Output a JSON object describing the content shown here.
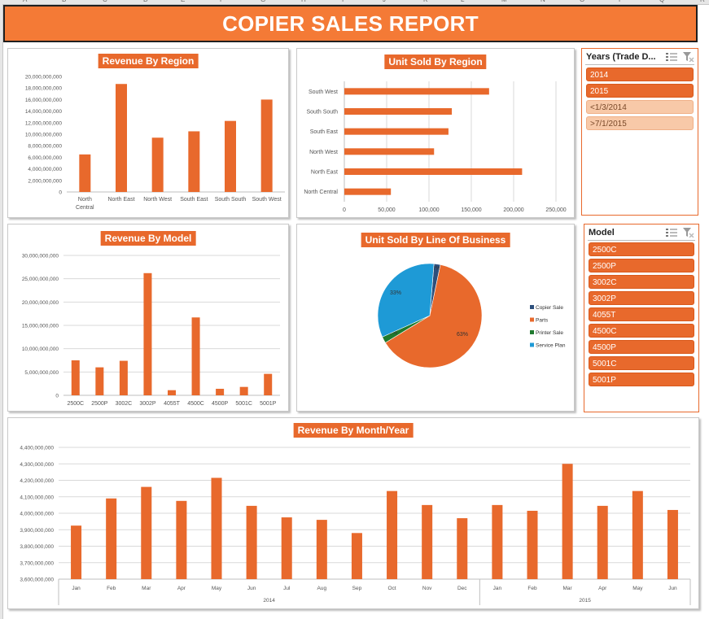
{
  "sheet": {
    "columns": [
      "A",
      "B",
      "C",
      "D",
      "E",
      "F",
      "G",
      "H",
      "I",
      "J",
      "K",
      "L",
      "M",
      "N",
      "O",
      "P",
      "Q",
      "R"
    ]
  },
  "report": {
    "title": "COPIER SALES REPORT"
  },
  "colors": {
    "accent": "#e8692c",
    "blue": "#1e9ad6",
    "green": "#1f7a2e",
    "navy": "#2d4f7c"
  },
  "slicers": {
    "years": {
      "title": "Years (Trade D...",
      "items": [
        {
          "label": "2014",
          "selected": true
        },
        {
          "label": "2015",
          "selected": true
        },
        {
          "label": "<1/3/2014",
          "selected": false
        },
        {
          "label": ">7/1/2015",
          "selected": false
        }
      ]
    },
    "model": {
      "title": "Model",
      "items": [
        {
          "label": "2500C",
          "selected": true
        },
        {
          "label": "2500P",
          "selected": true
        },
        {
          "label": "3002C",
          "selected": true
        },
        {
          "label": "3002P",
          "selected": true
        },
        {
          "label": "4055T",
          "selected": true
        },
        {
          "label": "4500C",
          "selected": true
        },
        {
          "label": "4500P",
          "selected": true
        },
        {
          "label": "5001C",
          "selected": true
        },
        {
          "label": "5001P",
          "selected": true
        }
      ]
    }
  },
  "chart_data": [
    {
      "id": "revenue_by_region",
      "type": "bar",
      "title": "Revenue By Region",
      "categories": [
        "North Central",
        "North East",
        "North West",
        "South East",
        "South South",
        "South West"
      ],
      "category_lines": [
        [
          "North",
          "Central"
        ],
        [
          "North East"
        ],
        [
          "North West"
        ],
        [
          "South East"
        ],
        [
          "South South"
        ],
        [
          "South West"
        ]
      ],
      "values": [
        6500000000,
        18700000000,
        9400000000,
        10500000000,
        12300000000,
        16000000000
      ],
      "ylim": [
        0,
        20000000000
      ],
      "yticks": [
        0,
        2000000000,
        4000000000,
        6000000000,
        8000000000,
        10000000000,
        12000000000,
        14000000000,
        16000000000,
        18000000000,
        20000000000
      ],
      "ytick_labels": [
        "0",
        "2,000,000,000",
        "4,000,000,000",
        "6,000,000,000",
        "8,000,000,000",
        "10,000,000,000",
        "12,000,000,000",
        "14,000,000,000",
        "16,000,000,000",
        "18,000,000,000",
        "20,000,000,000"
      ],
      "grid": false
    },
    {
      "id": "unit_sold_by_region",
      "type": "bar",
      "orientation": "horizontal",
      "title": "Unit Sold By Region",
      "categories": [
        "South West",
        "South South",
        "South East",
        "North West",
        "North East",
        "North Central"
      ],
      "values": [
        171000,
        127000,
        123000,
        106000,
        210000,
        55000
      ],
      "xlim": [
        0,
        250000
      ],
      "xticks": [
        0,
        50000,
        100000,
        150000,
        200000,
        250000
      ],
      "xtick_labels": [
        "0",
        "50,000",
        "100,000",
        "150,000",
        "200,000",
        "250,000"
      ],
      "grid": true
    },
    {
      "id": "revenue_by_model",
      "type": "bar",
      "title": "Revenue By Model",
      "categories": [
        "2500C",
        "2500P",
        "3002C",
        "3002P",
        "4055T",
        "4500C",
        "4500P",
        "5001C",
        "5001P"
      ],
      "values": [
        7500000000,
        6000000000,
        7400000000,
        26200000000,
        1100000000,
        16700000000,
        1400000000,
        1800000000,
        4600000000
      ],
      "ylim": [
        0,
        30000000000
      ],
      "yticks": [
        0,
        5000000000,
        10000000000,
        15000000000,
        20000000000,
        25000000000,
        30000000000
      ],
      "ytick_labels": [
        "0",
        "5,000,000,000",
        "10,000,000,000",
        "15,000,000,000",
        "20,000,000,000",
        "25,000,000,000",
        "30,000,000,000"
      ],
      "grid": true
    },
    {
      "id": "unit_sold_by_line_of_business",
      "type": "pie",
      "title": "Unit Sold By Line Of Business",
      "slices": [
        {
          "name": "Copier Sale",
          "value": 2,
          "label": "2%",
          "color": "#2d4f7c"
        },
        {
          "name": "Parts",
          "value": 63,
          "label": "63%",
          "color": "#e8692c"
        },
        {
          "name": "Printer Sale",
          "value": 2,
          "label": "2%",
          "color": "#1f7a2e"
        },
        {
          "name": "Service Plan",
          "value": 33,
          "label": "33%",
          "color": "#1e9ad6"
        }
      ],
      "legend": "right"
    },
    {
      "id": "revenue_by_month_year",
      "type": "bar",
      "title": "Revenue By Month/Year",
      "categories": [
        "Jan",
        "Feb",
        "Mar",
        "Apr",
        "May",
        "Jun",
        "Jul",
        "Aug",
        "Sep",
        "Oct",
        "Nov",
        "Dec",
        "Jan",
        "Feb",
        "Mar",
        "Apr",
        "May",
        "Jun"
      ],
      "groups": [
        {
          "label": "2014",
          "count": 12
        },
        {
          "label": "2015",
          "count": 6
        }
      ],
      "values": [
        3925000000,
        4090000000,
        4160000000,
        4075000000,
        4215000000,
        4045000000,
        3975000000,
        3960000000,
        3880000000,
        4135000000,
        4050000000,
        3970000000,
        4050000000,
        4015000000,
        4300000000,
        4045000000,
        4135000000,
        4020000000
      ],
      "ylim": [
        3600000000,
        4400000000
      ],
      "yticks": [
        3600000000,
        3700000000,
        3800000000,
        3900000000,
        4000000000,
        4100000000,
        4200000000,
        4300000000,
        4400000000
      ],
      "ytick_labels": [
        "3,600,000,000",
        "3,700,000,000",
        "3,800,000,000",
        "3,900,000,000",
        "4,000,000,000",
        "4,100,000,000",
        "4,200,000,000",
        "4,300,000,000",
        "4,400,000,000"
      ],
      "grid": true
    }
  ]
}
